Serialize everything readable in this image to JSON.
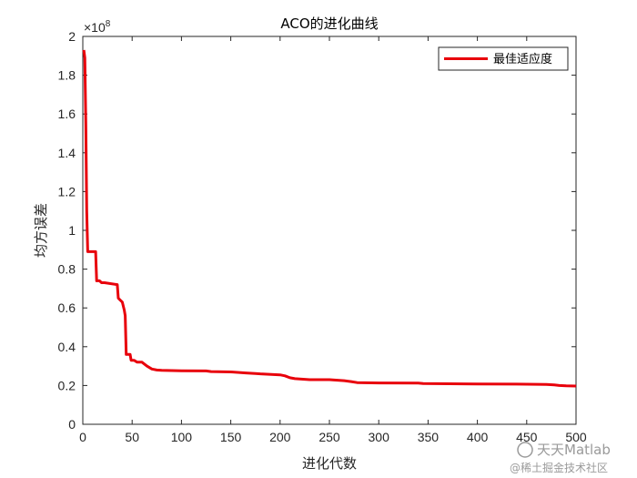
{
  "chart_data": {
    "type": "line",
    "title": "ACO的进化曲线",
    "xlabel": "进化代数",
    "ylabel": "均方误差",
    "xlim": [
      0,
      500
    ],
    "ylim": [
      0,
      2
    ],
    "y_exponent_label": "×10",
    "y_exponent_power": "8",
    "xticks": [
      0,
      50,
      100,
      150,
      200,
      250,
      300,
      350,
      400,
      450,
      500
    ],
    "yticks": [
      0,
      0.2,
      0.4,
      0.6,
      0.8,
      1,
      1.2,
      1.4,
      1.6,
      1.8,
      2
    ],
    "xtick_labels": [
      "0",
      "50",
      "100",
      "150",
      "200",
      "250",
      "300",
      "350",
      "400",
      "450",
      "500"
    ],
    "ytick_labels": [
      "0",
      "0.2",
      "0.4",
      "0.6",
      "0.8",
      "1",
      "1.2",
      "1.4",
      "1.6",
      "1.8",
      "2"
    ],
    "grid": false,
    "legend_position": "top-right",
    "series": [
      {
        "name": "最佳适应度",
        "color": "#e8000b",
        "x": [
          1,
          2,
          3,
          4,
          5,
          6,
          10,
          13,
          14,
          17,
          19,
          22,
          35,
          36,
          38,
          40,
          42,
          43,
          44,
          48,
          49,
          52,
          55,
          60,
          65,
          70,
          75,
          80,
          100,
          125,
          130,
          150,
          165,
          175,
          180,
          200,
          205,
          210,
          215,
          230,
          250,
          265,
          272,
          278,
          300,
          340,
          345,
          400,
          440,
          470,
          478,
          483,
          490,
          500
        ],
        "y": [
          1.93,
          1.89,
          1.55,
          1.1,
          0.89,
          0.89,
          0.89,
          0.89,
          0.74,
          0.74,
          0.73,
          0.73,
          0.72,
          0.65,
          0.64,
          0.63,
          0.59,
          0.56,
          0.36,
          0.36,
          0.33,
          0.33,
          0.32,
          0.32,
          0.3,
          0.285,
          0.28,
          0.278,
          0.276,
          0.275,
          0.272,
          0.27,
          0.265,
          0.262,
          0.26,
          0.255,
          0.25,
          0.24,
          0.235,
          0.23,
          0.23,
          0.225,
          0.22,
          0.215,
          0.213,
          0.212,
          0.21,
          0.208,
          0.207,
          0.205,
          0.203,
          0.2,
          0.198,
          0.197
        ]
      }
    ]
  },
  "watermark": {
    "line1": "天天Matlab",
    "line2": "@稀土掘金技术社区"
  }
}
